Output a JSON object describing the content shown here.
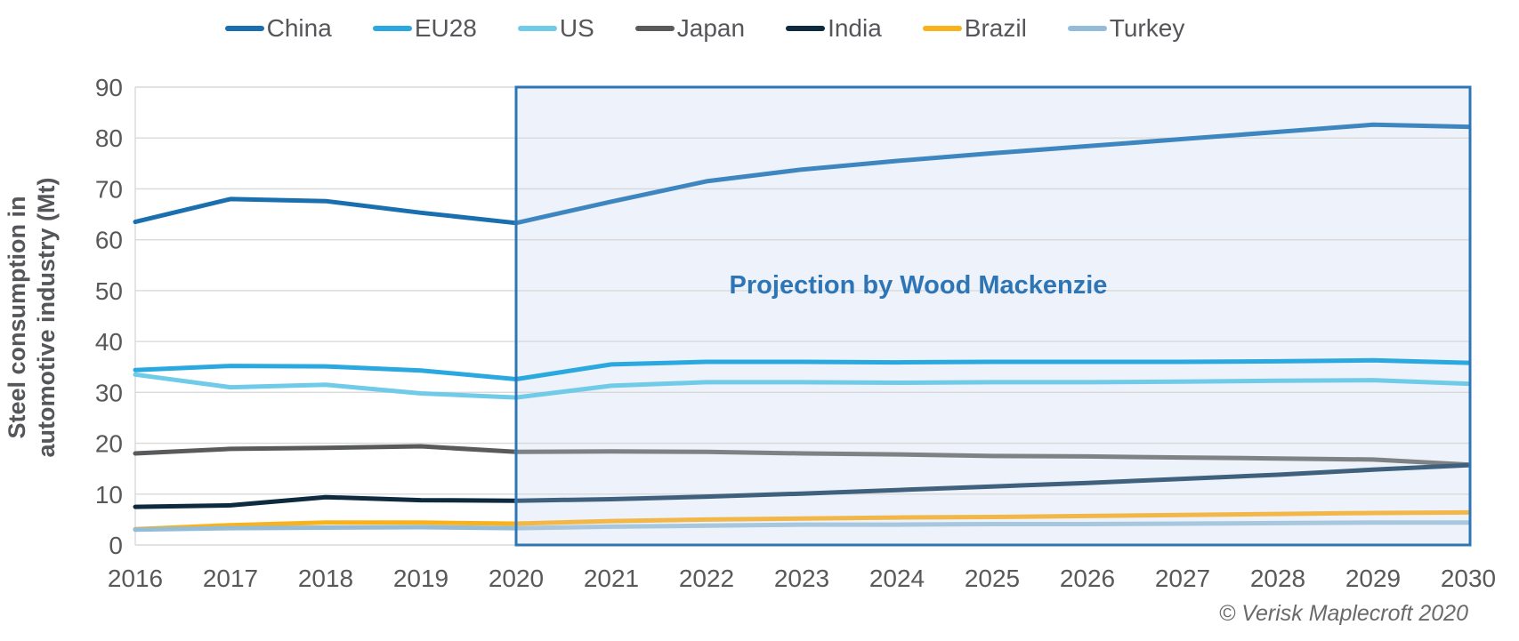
{
  "page": {
    "annotation": "Projection by Wood Mackenzie",
    "copyright": "© Verisk Maplecroft 2020",
    "accent_color": "#2e75b6",
    "projection_fill": "#edf2fb",
    "grid_color": "#d9d9d9",
    "tick_color": "#595959"
  },
  "chart_data": {
    "type": "line",
    "title": "",
    "xlabel": "",
    "ylabel": "Steel consumption in automotive industry (Mt)",
    "ylim": [
      0,
      90
    ],
    "ytick_step": 10,
    "grid": "horizontal",
    "legend_position": "top",
    "x": [
      2016,
      2017,
      2018,
      2019,
      2020,
      2021,
      2022,
      2023,
      2024,
      2025,
      2026,
      2027,
      2028,
      2029,
      2030
    ],
    "projection_start": 2020,
    "projection_label": "Projection by Wood Mackenzie",
    "series": [
      {
        "name": "China",
        "color": "#1a6faf",
        "projection_color": "#3e86c0",
        "values": [
          63.5,
          68.0,
          67.6,
          65.3,
          63.3,
          67.5,
          71.5,
          73.8,
          75.5,
          77.0,
          78.4,
          79.8,
          81.2,
          82.6,
          82.2
        ]
      },
      {
        "name": "EU28",
        "color": "#29a9df",
        "projection_color": "#29a9df",
        "values": [
          34.4,
          35.2,
          35.1,
          34.3,
          32.6,
          35.5,
          36.0,
          36.0,
          35.9,
          36.0,
          36.0,
          36.0,
          36.1,
          36.3,
          35.8
        ]
      },
      {
        "name": "US",
        "color": "#70cbe9",
        "projection_color": "#70cbe9",
        "values": [
          33.5,
          31.0,
          31.5,
          29.8,
          29.0,
          31.3,
          32.0,
          32.0,
          31.9,
          32.0,
          32.0,
          32.1,
          32.3,
          32.4,
          31.7
        ]
      },
      {
        "name": "Japan",
        "color": "#595a5c",
        "projection_color": "#7f8284",
        "values": [
          18.0,
          18.9,
          19.1,
          19.4,
          18.3,
          18.4,
          18.3,
          18.0,
          17.8,
          17.5,
          17.4,
          17.2,
          17.0,
          16.8,
          15.8
        ]
      },
      {
        "name": "India",
        "color": "#0d2a3f",
        "projection_color": "#3f617d",
        "values": [
          7.5,
          7.8,
          9.4,
          8.8,
          8.7,
          9.0,
          9.5,
          10.1,
          10.8,
          11.5,
          12.2,
          13.0,
          13.8,
          14.8,
          15.7
        ]
      },
      {
        "name": "Brazil",
        "color": "#f9b21b",
        "projection_color": "#f2b747",
        "values": [
          3.1,
          3.9,
          4.4,
          4.4,
          4.2,
          4.7,
          5.0,
          5.2,
          5.4,
          5.5,
          5.7,
          5.9,
          6.1,
          6.3,
          6.4
        ]
      },
      {
        "name": "Turkey",
        "color": "#92bcd8",
        "projection_color": "#a6c7dd",
        "values": [
          3.0,
          3.3,
          3.4,
          3.5,
          3.3,
          3.6,
          3.8,
          4.0,
          4.0,
          4.1,
          4.1,
          4.2,
          4.3,
          4.4,
          4.4
        ]
      }
    ]
  }
}
